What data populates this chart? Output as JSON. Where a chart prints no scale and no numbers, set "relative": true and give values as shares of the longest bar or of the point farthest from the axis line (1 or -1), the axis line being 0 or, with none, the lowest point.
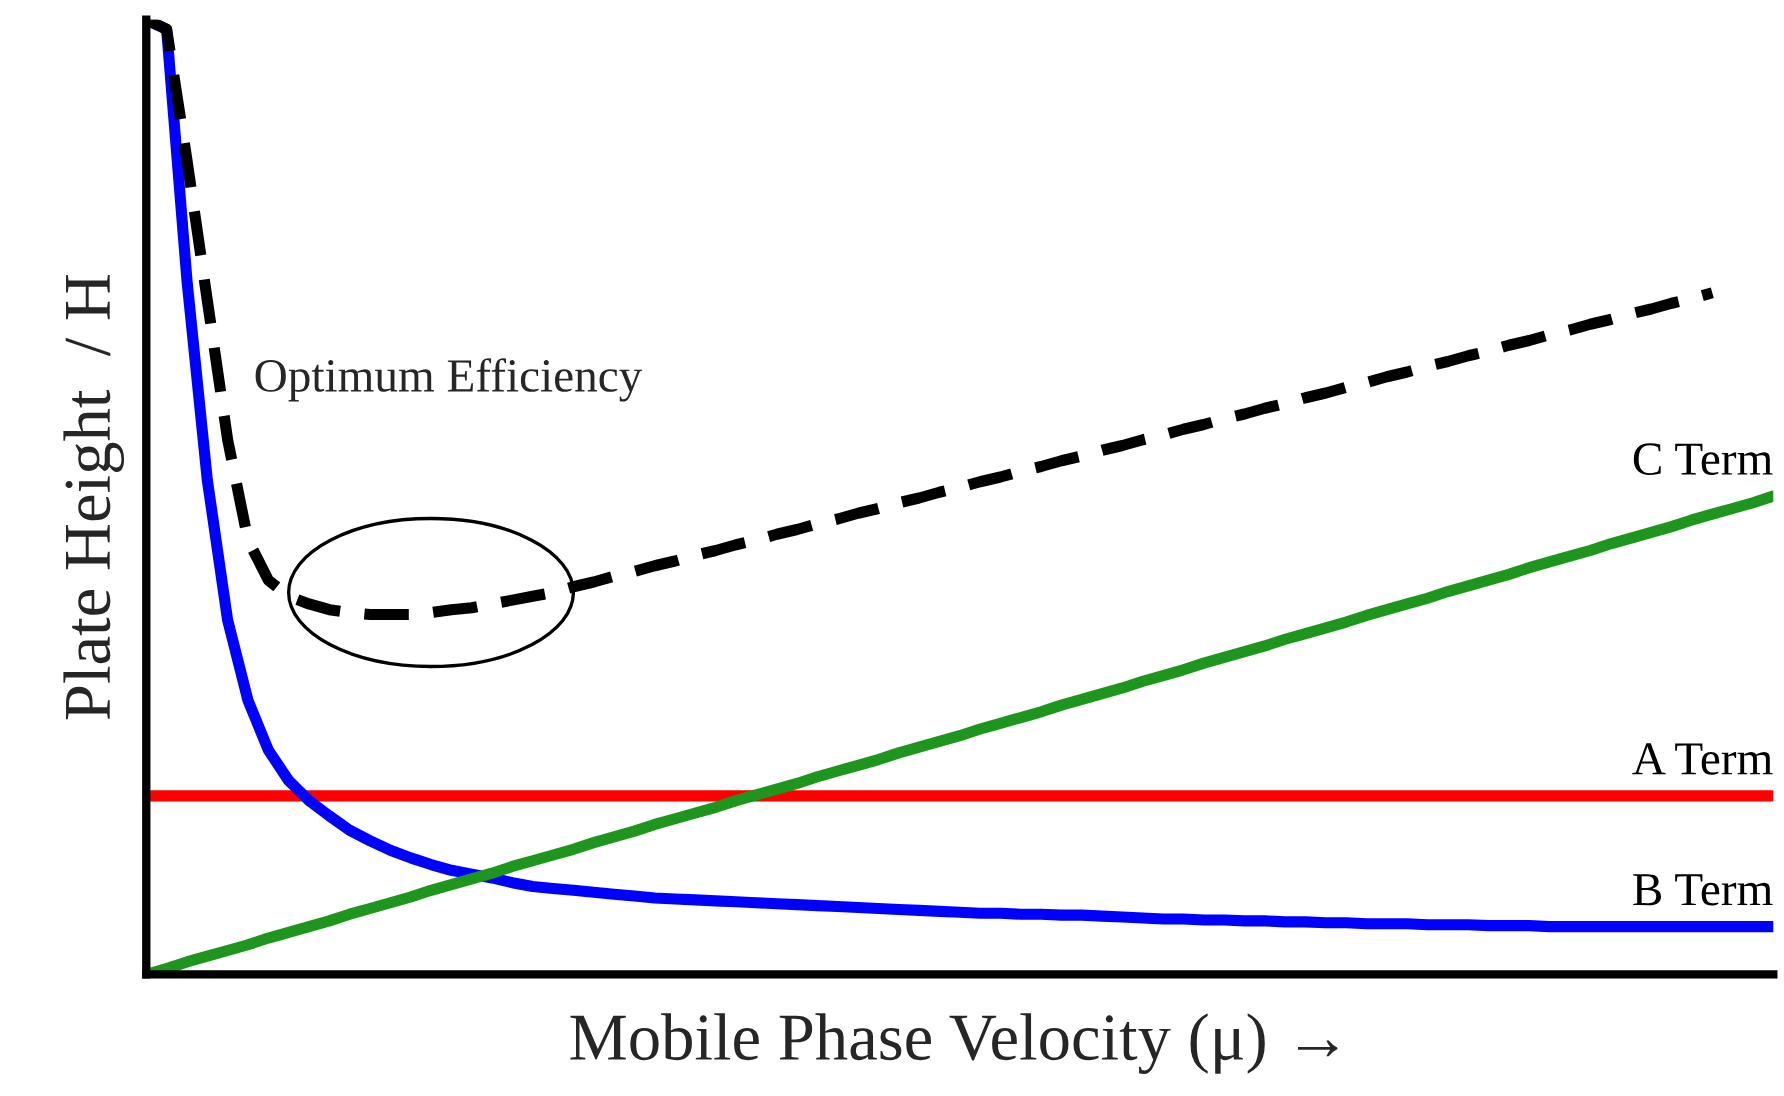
{
  "chart_data": {
    "type": "line",
    "relative": true,
    "xlabel": "Mobile Phase Velocity (μ) →",
    "ylabel": "Plate Height  / H",
    "legend": false,
    "marker": "none",
    "annotations": [
      "Optimum Efficiency"
    ],
    "categories": [
      null,
      null,
      null,
      null,
      null,
      null,
      null,
      null,
      null,
      null,
      null,
      null,
      null,
      null,
      null,
      null,
      null,
      null,
      null,
      null,
      null,
      null,
      null,
      null,
      null,
      null,
      null,
      null,
      null,
      null,
      null,
      null,
      null,
      null,
      null,
      null,
      null,
      null,
      null,
      null,
      null,
      null,
      null,
      null,
      null,
      null,
      null,
      null,
      null,
      null,
      null,
      null,
      null,
      null,
      null,
      null,
      null,
      null,
      null,
      null,
      null,
      null,
      null,
      null,
      null,
      null,
      null,
      null,
      null,
      null,
      null,
      null,
      null,
      null,
      null,
      null,
      null,
      null,
      null,
      null,
      null
    ],
    "series": [
      {
        "name": "A Term",
        "color": "#ff0000",
        "line_style": "solid",
        "values": [
          0.187,
          0.187,
          0.187,
          0.187,
          0.187,
          0.187,
          0.187,
          0.187,
          0.187,
          0.187,
          0.187,
          0.187,
          0.187,
          0.187,
          0.187,
          0.187,
          0.187,
          0.187,
          0.187,
          0.187,
          0.187,
          0.187,
          0.187,
          0.187,
          0.187,
          0.187,
          0.187,
          0.187,
          0.187,
          0.187,
          0.187,
          0.187,
          0.187,
          0.187,
          0.187,
          0.187,
          0.187,
          0.187,
          0.187,
          0.187,
          0.187,
          0.187,
          0.187,
          0.187,
          0.187,
          0.187,
          0.187,
          0.187,
          0.187,
          0.187,
          0.187,
          0.187,
          0.187,
          0.187,
          0.187,
          0.187,
          0.187,
          0.187,
          0.187,
          0.187,
          0.187,
          0.187,
          0.187,
          0.187,
          0.187,
          0.187,
          0.187,
          0.187,
          0.187,
          0.187,
          0.187,
          0.187,
          0.187,
          0.187,
          0.187,
          0.187,
          0.187,
          0.187,
          0.187,
          0.187,
          0.187
        ]
      },
      {
        "name": "B Term",
        "color": "#0000ff",
        "line_style": "solid",
        "values": [
          1.0,
          0.99,
          0.727,
          0.518,
          0.371,
          0.287,
          0.235,
          0.203,
          0.182,
          0.166,
          0.151,
          0.14,
          0.13,
          0.122,
          0.115,
          0.109,
          0.105,
          0.101,
          0.096,
          0.092,
          0.09,
          0.088,
          0.086,
          0.084,
          0.082,
          0.08,
          0.079,
          0.078,
          0.077,
          0.076,
          0.075,
          0.074,
          0.073,
          0.072,
          0.071,
          0.07,
          0.069,
          0.068,
          0.067,
          0.066,
          0.065,
          0.064,
          0.064,
          0.063,
          0.063,
          0.062,
          0.062,
          0.061,
          0.06,
          0.059,
          0.058,
          0.058,
          0.057,
          0.057,
          0.056,
          0.056,
          0.055,
          0.055,
          0.054,
          0.054,
          0.053,
          0.053,
          0.053,
          0.052,
          0.052,
          0.052,
          0.051,
          0.051,
          0.051,
          0.05,
          0.05,
          0.05,
          0.05,
          0.05,
          0.05,
          0.05,
          0.05,
          0.05,
          0.05,
          0.05,
          0.05
        ]
      },
      {
        "name": "C Term",
        "color": "#1e961e",
        "line_style": "solid",
        "values": [
          0,
          0.006,
          0.013,
          0.019,
          0.025,
          0.031,
          0.038,
          0.044,
          0.05,
          0.056,
          0.063,
          0.069,
          0.075,
          0.081,
          0.088,
          0.094,
          0.1,
          0.106,
          0.113,
          0.119,
          0.125,
          0.131,
          0.138,
          0.144,
          0.15,
          0.157,
          0.163,
          0.169,
          0.175,
          0.182,
          0.188,
          0.194,
          0.2,
          0.207,
          0.213,
          0.219,
          0.225,
          0.232,
          0.238,
          0.244,
          0.25,
          0.257,
          0.263,
          0.269,
          0.275,
          0.282,
          0.288,
          0.294,
          0.3,
          0.307,
          0.313,
          0.319,
          0.326,
          0.332,
          0.338,
          0.344,
          0.351,
          0.357,
          0.363,
          0.369,
          0.376,
          0.382,
          0.388,
          0.394,
          0.401,
          0.407,
          0.413,
          0.419,
          0.426,
          0.432,
          0.438,
          0.444,
          0.451,
          0.457,
          0.463,
          0.469,
          0.476,
          0.482,
          0.488,
          0.494,
          0.501
        ]
      },
      {
        "color": "#000000",
        "line_style": "dashed",
        "values": [
          1.0,
          0.99,
          0.853,
          0.706,
          0.56,
          0.455,
          0.413,
          0.396,
          0.388,
          0.382,
          0.379,
          0.377,
          0.377,
          0.377,
          0.379,
          0.382,
          0.384,
          0.388,
          0.392,
          0.396,
          0.4,
          0.406,
          0.411,
          0.417,
          0.422,
          0.428,
          0.433,
          0.439,
          0.444,
          0.45,
          0.455,
          0.461,
          0.466,
          0.472,
          0.477,
          0.483,
          0.488,
          0.494,
          0.499,
          0.505,
          0.51,
          0.516,
          0.521,
          0.527,
          0.532,
          0.538,
          0.543,
          0.549,
          0.554,
          0.56,
          0.565,
          0.571,
          0.576,
          0.582,
          0.587,
          0.593,
          0.598,
          0.604,
          0.609,
          0.615,
          0.62,
          0.626,
          0.631,
          0.637,
          0.642,
          0.648,
          0.653,
          0.659,
          0.664,
          0.67,
          0.675,
          0.681,
          0.686,
          0.692,
          0.697,
          0.703,
          0.708,
          0.714,
          null,
          null,
          null
        ]
      }
    ]
  }
}
